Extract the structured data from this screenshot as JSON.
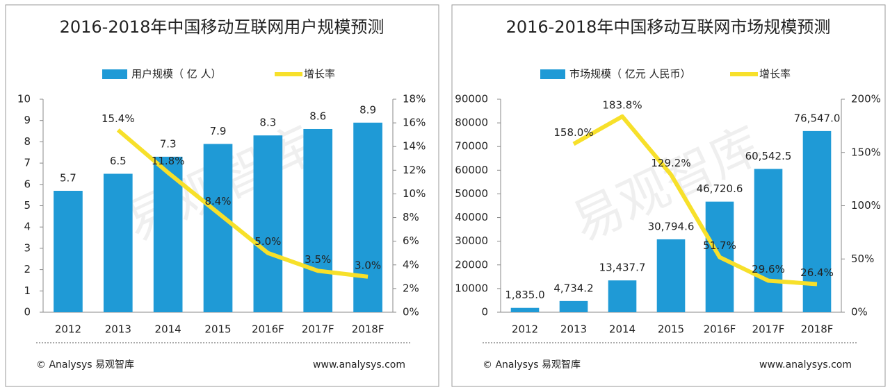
{
  "chart_data": [
    {
      "type": "bar",
      "title": "2016-2018年中国移动互联网用户规模预测",
      "categories": [
        "2012",
        "2013",
        "2014",
        "2015",
        "2016F",
        "2017F",
        "2018F"
      ],
      "series": [
        {
          "name": "用户规模（ 亿 人）",
          "color": "#1f9ad6",
          "type": "bar",
          "values": [
            5.7,
            6.5,
            7.3,
            7.9,
            8.3,
            8.6,
            8.9
          ]
        },
        {
          "name": "增长率",
          "color": "#f7e02a",
          "type": "line",
          "axis": "y2",
          "values": [
            null,
            15.4,
            11.8,
            8.4,
            5.0,
            3.5,
            3.0
          ],
          "value_labels": [
            null,
            "15.4%",
            "11.8%",
            "8.4%",
            "5.0%",
            "3.5%",
            "3.0%"
          ]
        }
      ],
      "ylim": [
        0,
        10
      ],
      "yticks": [
        0,
        1,
        2,
        3,
        4,
        5,
        6,
        7,
        8,
        9,
        10
      ],
      "y2lim": [
        0,
        18
      ],
      "y2ticks": [
        {
          "value": 0,
          "label": "0%"
        },
        {
          "value": 2,
          "label": "2%"
        },
        {
          "value": 4,
          "label": "4%"
        },
        {
          "value": 6,
          "label": "6%"
        },
        {
          "value": 8,
          "label": "8%"
        },
        {
          "value": 10,
          "label": "10%"
        },
        {
          "value": 12,
          "label": "12%"
        },
        {
          "value": 14,
          "label": "14%"
        },
        {
          "value": 16,
          "label": "16%"
        },
        {
          "value": 18,
          "label": "18%"
        }
      ],
      "watermark": "易观智库",
      "source": "© Analysys 易观智库",
      "website": "www.analysys.com"
    },
    {
      "type": "bar",
      "title": "2016-2018年中国移动互联网市场规模预测",
      "categories": [
        "2012",
        "2013",
        "2014",
        "2015",
        "2016F",
        "2017F",
        "2018F"
      ],
      "series": [
        {
          "name": "市场规模（ 亿元 人民币）",
          "color": "#1f9ad6",
          "type": "bar",
          "values": [
            1835.0,
            4734.2,
            13437.7,
            30794.6,
            46720.6,
            60542.5,
            76547.0
          ],
          "value_labels": [
            "1,835.0",
            "4,734.2",
            "13,437.7",
            "30,794.6",
            "46,720.6",
            "60,542.5",
            "76,547.0"
          ]
        },
        {
          "name": "增长率",
          "color": "#f7e02a",
          "type": "line",
          "axis": "y2",
          "values": [
            null,
            158.0,
            183.8,
            129.2,
            51.7,
            29.6,
            26.4
          ],
          "value_labels": [
            null,
            "158.0%",
            "183.8%",
            "129.2%",
            "51.7%",
            "29.6%",
            "26.4%"
          ]
        }
      ],
      "ylim": [
        0,
        90000
      ],
      "yticks": [
        0,
        10000,
        20000,
        30000,
        40000,
        50000,
        60000,
        70000,
        80000,
        90000
      ],
      "y2lim": [
        0,
        200
      ],
      "y2ticks": [
        {
          "value": 0,
          "label": "0%"
        },
        {
          "value": 50,
          "label": "50%"
        },
        {
          "value": 100,
          "label": "100%"
        },
        {
          "value": 150,
          "label": "150%"
        },
        {
          "value": 200,
          "label": "200%"
        }
      ],
      "watermark": "易观智库",
      "source": "© Analysys 易观智库",
      "website": "www.analysys.com"
    }
  ]
}
